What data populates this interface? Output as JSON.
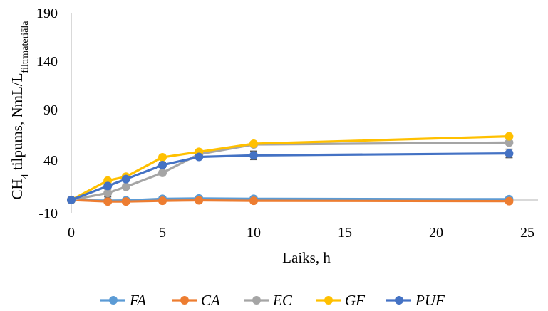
{
  "chart_data": {
    "type": "line",
    "xlabel": "Laiks, h",
    "ylabel": {
      "main": "CH",
      "sub1": "4",
      "middle": " tilpums, NmL/L",
      "sub2": "filtrmateriāla"
    },
    "xlim": [
      0,
      25
    ],
    "ylim": [
      -10,
      190
    ],
    "xticks": [
      0,
      5,
      10,
      15,
      20,
      25
    ],
    "yticks": [
      -10,
      40,
      90,
      140,
      190
    ],
    "xtick_labels": [
      "0",
      "5",
      "10",
      "15",
      "20",
      "25"
    ],
    "ytick_labels": [
      "-10",
      "40",
      "90",
      "140",
      "190"
    ],
    "grid": false,
    "legend_position": "bottom",
    "series": [
      {
        "name": "FA",
        "color": "#5B9BD5",
        "x": [
          0,
          2,
          3,
          5,
          7,
          10,
          24
        ],
        "y": [
          0,
          -1,
          -0.5,
          1.5,
          2,
          1.5,
          1
        ],
        "error": [
          0,
          0,
          0,
          0,
          0,
          0,
          0
        ]
      },
      {
        "name": "CA",
        "color": "#ED7D31",
        "x": [
          0,
          2,
          3,
          5,
          7,
          10,
          24
        ],
        "y": [
          0,
          -2,
          -2,
          -1,
          -0.5,
          -1,
          -1.5
        ],
        "error": [
          0,
          0,
          0,
          0,
          0,
          0,
          0
        ]
      },
      {
        "name": "EC",
        "color": "#A5A5A5",
        "x": [
          0,
          2,
          3,
          5,
          7,
          10,
          24
        ],
        "y": [
          0,
          9,
          17,
          35,
          59,
          71.5,
          74
        ],
        "error": [
          0,
          5,
          1,
          1,
          1,
          1.5,
          0.5
        ]
      },
      {
        "name": "GF",
        "color": "#FFC000",
        "x": [
          0,
          2,
          3,
          5,
          7,
          10,
          24
        ],
        "y": [
          0,
          25,
          30,
          55,
          62,
          72.5,
          82
        ],
        "error": [
          0,
          0.5,
          0.5,
          0.5,
          1,
          1.5,
          0.5
        ]
      },
      {
        "name": "PUF",
        "color": "#4472C4",
        "x": [
          0,
          2,
          3,
          5,
          7,
          10,
          24
        ],
        "y": [
          0,
          18,
          27,
          45,
          55.5,
          57.5,
          60
        ],
        "error": [
          0,
          1,
          2,
          3,
          1,
          5.5,
          5.5
        ]
      }
    ]
  }
}
